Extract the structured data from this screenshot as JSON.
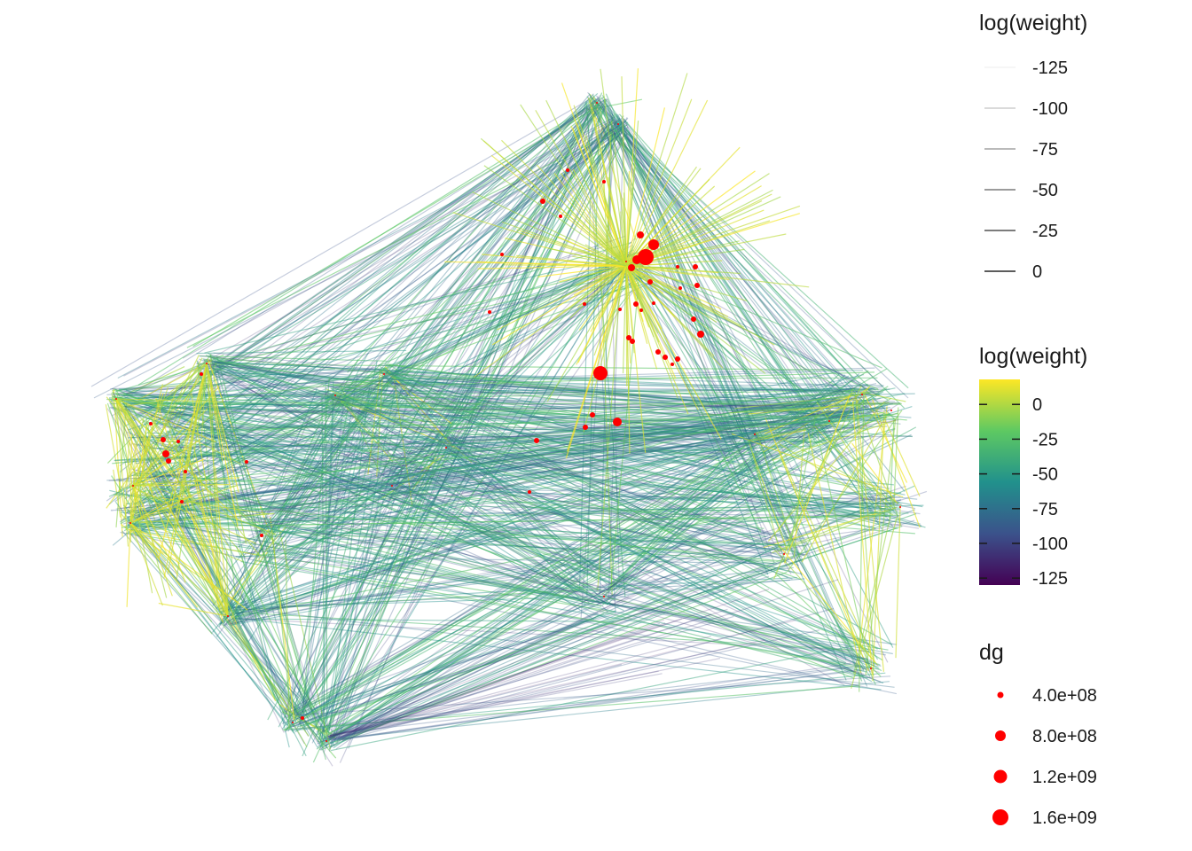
{
  "legend": {
    "width_legend": {
      "title": "log(weight)",
      "labels": [
        "-125",
        "-100",
        "-75",
        "-50",
        "-25",
        "0"
      ],
      "alphas": [
        0.05,
        0.22,
        0.4,
        0.58,
        0.76,
        0.95
      ]
    },
    "color_legend": {
      "title": "log(weight)",
      "labels": [
        "0",
        "-25",
        "-50",
        "-75",
        "-100",
        "-125"
      ],
      "range": [
        -130,
        18
      ],
      "stops": [
        "#440154",
        "#3b528b",
        "#21918c",
        "#5ec962",
        "#fde725"
      ]
    },
    "size_legend": {
      "title": "dg",
      "labels": [
        "4.0e+08",
        "8.0e+08",
        "1.2e+09",
        "1.6e+09"
      ],
      "color": "#ff0000"
    }
  },
  "chart_data": {
    "type": "network",
    "edge_color_scale": "viridis",
    "node_color": "#ff0000",
    "edge_weight_log_range": [
      -125,
      0
    ],
    "node_dg_range": [
      400000000,
      1600000000
    ]
  }
}
